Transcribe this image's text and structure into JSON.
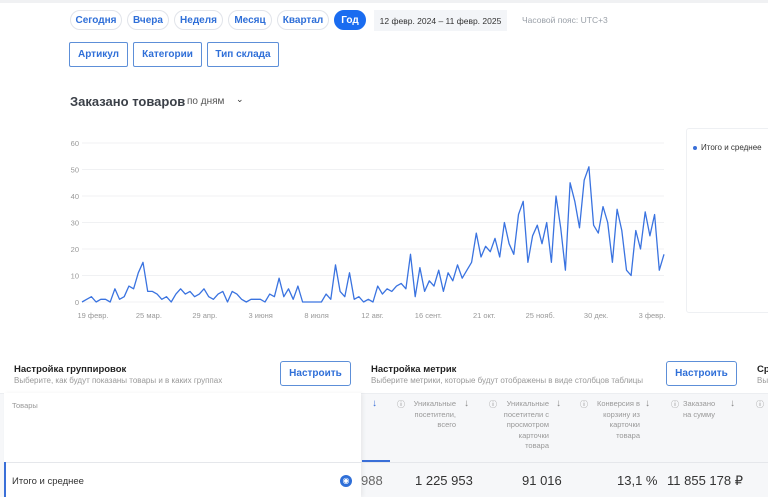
{
  "periods": [
    {
      "label": "Сегодня"
    },
    {
      "label": "Вчера"
    },
    {
      "label": "Неделя"
    },
    {
      "label": "Месяц"
    },
    {
      "label": "Квартал"
    },
    {
      "label": "Год",
      "active": true
    }
  ],
  "date_range": "12 февр. 2024  –  11 февр. 2025",
  "timezone": "Часовой пояс: UTC+3",
  "filters": [
    "Артикул",
    "Категории",
    "Тип склада"
  ],
  "chart_section": {
    "title": "Заказано товаров",
    "period_select": "по дням"
  },
  "chart_data": {
    "type": "line",
    "title": "Заказано товаров",
    "ylim": [
      0,
      60
    ],
    "yticks": [
      0,
      10,
      20,
      30,
      40,
      50,
      60
    ],
    "xticks": [
      "19 февр.",
      "25 мар.",
      "29 апр.",
      "3 июня",
      "8 июля",
      "12 авг.",
      "16 сент.",
      "21 окт.",
      "25 нояб.",
      "30 дек.",
      "3 февр."
    ],
    "legend": "top-right",
    "series": [
      {
        "name": "Итого и среднее",
        "color": "#3a73e0",
        "values": [
          0,
          1,
          2,
          0,
          1,
          1,
          0,
          5,
          1,
          2,
          6,
          5,
          11,
          15,
          4,
          4,
          3,
          1,
          2,
          0,
          3,
          5,
          3,
          4,
          2,
          3,
          5,
          2,
          1,
          3,
          4,
          0,
          4,
          3,
          1,
          0,
          1,
          1,
          1,
          0,
          3,
          2,
          9,
          2,
          5,
          1,
          6,
          0,
          0,
          0,
          0,
          0,
          3,
          1,
          14,
          4,
          2,
          11,
          1,
          2,
          0,
          1,
          0,
          6,
          3,
          5,
          4,
          6,
          7,
          5,
          18,
          2,
          13,
          4,
          8,
          6,
          12,
          4,
          11,
          8,
          14,
          9,
          12,
          15,
          26,
          17,
          21,
          19,
          24,
          17,
          30,
          22,
          18,
          33,
          38,
          15,
          25,
          29,
          22,
          30,
          15,
          40,
          28,
          12,
          45,
          38,
          28,
          46,
          51,
          29,
          26,
          36,
          30,
          15,
          35,
          27,
          12,
          10,
          27,
          20,
          34,
          25,
          33,
          12,
          18
        ]
      }
    ]
  },
  "grouping": {
    "title": "Настройка группировок",
    "subtitle": "Выберите, как будут показаны товары и в каких группах",
    "button": "Настроить"
  },
  "metrics": {
    "title": "Настройка метрик",
    "subtitle": "Выберите метрики, которые будут отображены в виде столбцов таблицы",
    "button": "Настроить"
  },
  "third": {
    "title": "Ср",
    "subtitle": "Вы"
  },
  "table": {
    "col_goods": "Товары",
    "columns": [
      "Уникальные посетители, всего",
      "Уникальные посетители с просмотром карточки товара",
      "Конверсия в корзину из карточки товара",
      "Заказано на сумму"
    ],
    "row": {
      "label": "Итого и среднее",
      "partial": "988",
      "values": [
        "1 225 953",
        "91 016",
        "13,1 %",
        "11 855 178 ₽"
      ]
    }
  }
}
